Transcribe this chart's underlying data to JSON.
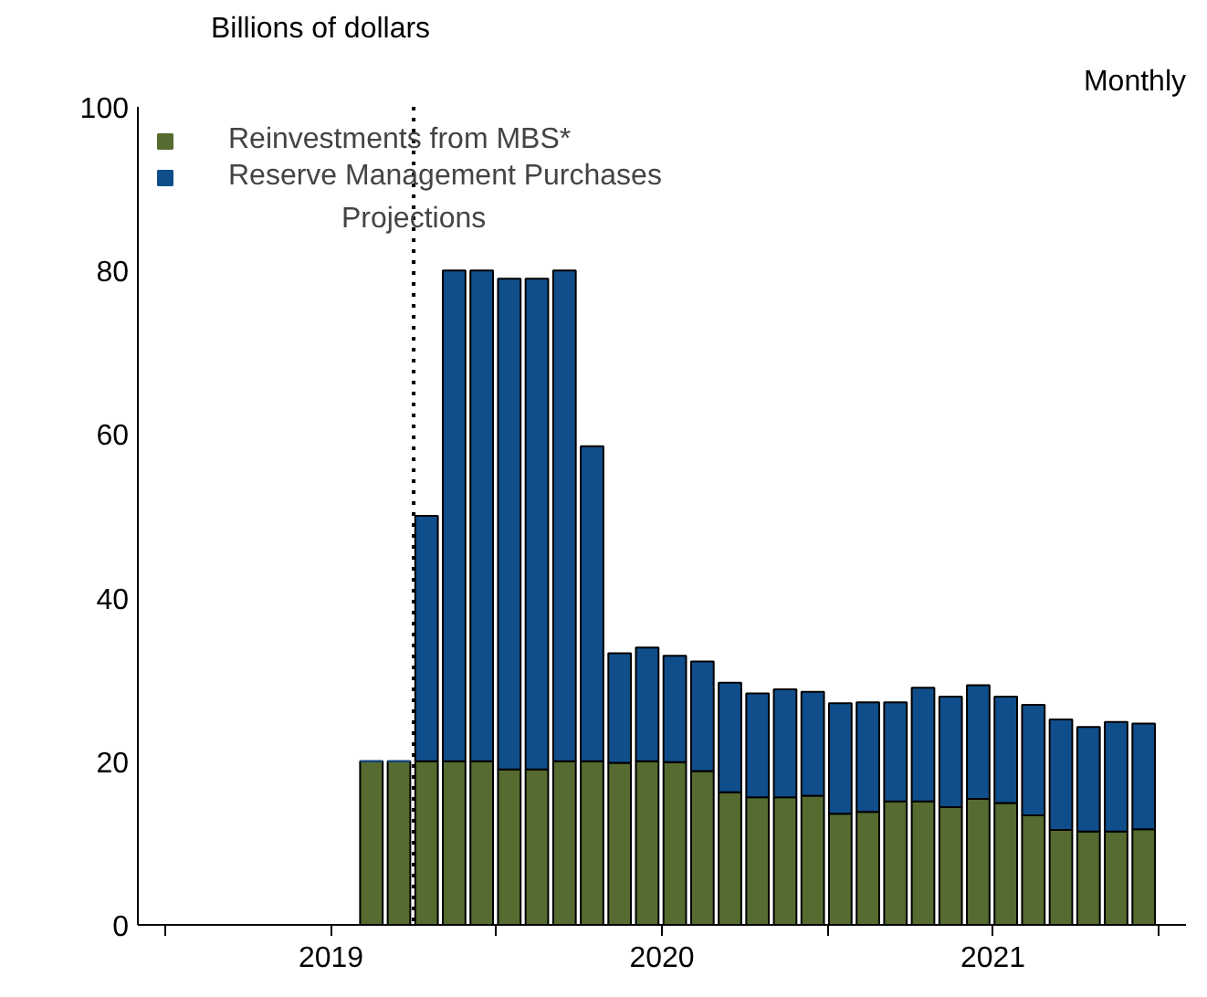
{
  "chart_data": {
    "type": "bar",
    "stacked": true,
    "ylabel": "Billions of dollars",
    "annotations": [
      "Monthly"
    ],
    "x": [
      "2019-01-15",
      "2019-02-15",
      "2019-03-15",
      "2019-04-15",
      "2019-05-15",
      "2019-06-15",
      "2019-07-15",
      "2019-08-15",
      "2019-09-15",
      "2019-10-15",
      "2019-11-15",
      "2019-12-15",
      "2020-01-15",
      "2020-02-15",
      "2020-03-15",
      "2020-04-15",
      "2020-05-15",
      "2020-06-15",
      "2020-07-15",
      "2020-08-15",
      "2020-09-15",
      "2020-10-15",
      "2020-11-15",
      "2020-12-15",
      "2021-01-15",
      "2021-02-15",
      "2021-03-15",
      "2021-04-15",
      "2021-05-15",
      "2021-06-15",
      "2021-07-15",
      "2021-08-15",
      "2021-09-15",
      "2021-10-15",
      "2021-11-15",
      "2021-12-15"
    ],
    "series": [
      {
        "name": "Reinvestments from MBS*",
        "color": "#556b2f",
        "values": [
          0,
          0,
          0,
          0,
          0,
          0,
          0,
          20,
          20,
          20,
          20,
          20,
          19,
          19,
          20,
          20,
          19.8,
          20,
          19.9,
          18.8,
          16.2,
          15.6,
          15.6,
          15.8,
          13.6,
          13.8,
          15.1,
          15.1,
          14.4,
          15.4,
          14.9,
          13.4,
          11.6,
          11.4,
          11.4,
          11.7
        ]
      },
      {
        "name": "Reserve Management Purchases",
        "color": "#104e8b",
        "values": [
          0,
          0,
          0,
          0,
          0,
          0,
          0,
          0,
          0,
          30,
          60,
          60,
          60,
          60,
          60,
          38.5,
          13.4,
          13.9,
          13,
          13.4,
          13.4,
          12.7,
          13.2,
          12.7,
          13.5,
          13.4,
          12.1,
          13.9,
          13.5,
          13.9,
          13,
          13.5,
          13.5,
          12.8,
          13.4,
          12.9
        ]
      }
    ],
    "xlim": [
      "2018-12",
      "2022-02"
    ],
    "xticks": [
      {
        "value": "2019-01",
        "label": null
      },
      {
        "value": "2019-07",
        "label": "2019"
      },
      {
        "value": "2020-01",
        "label": null
      },
      {
        "value": "2020-07",
        "label": "2020"
      },
      {
        "value": "2021-01",
        "label": null
      },
      {
        "value": "2021-07",
        "label": "2021"
      },
      {
        "value": "2022-01",
        "label": null
      }
    ],
    "ylim": [
      0,
      100
    ],
    "yticks": [
      0,
      20,
      40,
      60,
      80,
      100
    ],
    "ref_lines": [
      {
        "axis": "x",
        "value": "2019-10",
        "label": "Projections",
        "line_style": "dotted",
        "color": "#000000"
      }
    ],
    "grid": false,
    "legend": "top left"
  }
}
